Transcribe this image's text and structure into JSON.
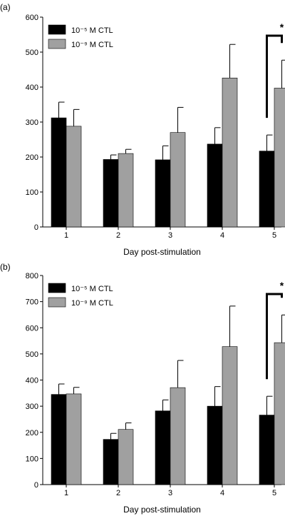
{
  "chart_data": [
    {
      "type": "bar",
      "panel_label": "(a)",
      "categories": [
        "1",
        "2",
        "3",
        "4",
        "5"
      ],
      "xlabel": "Day post-stimulation",
      "ylabel": "",
      "ylim": [
        0,
        600
      ],
      "yticks": [
        "0",
        "100",
        "200",
        "300",
        "400",
        "500",
        "600"
      ],
      "grid": false,
      "legend_position": "top-left",
      "series": [
        {
          "name": "10⁻⁵ M CTL",
          "color": "#000000",
          "values": [
            312,
            193,
            192,
            237,
            217
          ],
          "errors": [
            45,
            13,
            40,
            47,
            46
          ]
        },
        {
          "name": "10⁻⁹ M CTL",
          "color": "#a0a0a0",
          "values": [
            288,
            210,
            270,
            426,
            397
          ],
          "errors": [
            48,
            12,
            72,
            96,
            80
          ]
        }
      ],
      "annotations": [
        {
          "category": "5",
          "text": "*"
        }
      ]
    },
    {
      "type": "bar",
      "panel_label": "(b)",
      "categories": [
        "1",
        "2",
        "3",
        "4",
        "5"
      ],
      "xlabel": "Day post-stimulation",
      "ylabel": "",
      "ylim": [
        0,
        800
      ],
      "yticks": [
        "0",
        "100",
        "200",
        "300",
        "400",
        "500",
        "600",
        "700",
        "800"
      ],
      "grid": false,
      "legend_position": "top-left",
      "series": [
        {
          "name": "10⁻⁵ M CTL",
          "color": "#000000",
          "values": [
            345,
            173,
            282,
            300,
            266
          ],
          "errors": [
            40,
            23,
            42,
            75,
            72
          ]
        },
        {
          "name": "10⁻⁹ M CTL",
          "color": "#a0a0a0",
          "values": [
            347,
            211,
            371,
            528,
            543
          ],
          "errors": [
            25,
            25,
            104,
            155,
            106
          ]
        }
      ],
      "annotations": [
        {
          "category": "5",
          "text": "*"
        }
      ]
    }
  ]
}
